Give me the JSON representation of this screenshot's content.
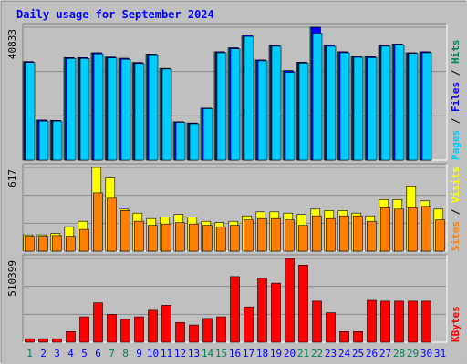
{
  "chart_data": {
    "type": "bar",
    "title": "Daily usage for September 2024",
    "x": [
      "1",
      "2",
      "3",
      "4",
      "5",
      "6",
      "7",
      "8",
      "9",
      "10",
      "11",
      "12",
      "13",
      "14",
      "15",
      "16",
      "17",
      "18",
      "19",
      "20",
      "21",
      "22",
      "23",
      "24",
      "25",
      "26",
      "27",
      "28",
      "29",
      "30",
      "31"
    ],
    "weekend_days": [
      "1",
      "7",
      "8",
      "14",
      "15",
      "21",
      "22",
      "28",
      "29"
    ],
    "colors": {
      "background": "#c0c0c0",
      "plot_bg": "#c0c0c0",
      "grid": "#8c8c8c",
      "title": "#0000ff",
      "weekday_label": "#0000ff",
      "weekend_label": "#00805c",
      "hits": "#00805c",
      "files": "#0000ff",
      "pages": "#00ccff",
      "visits": "#ffff00",
      "sites": "#ff8000",
      "kbytes": "#ff0000"
    },
    "panels": [
      {
        "name": "hits-files-pages",
        "ymax_label": "40833",
        "ymax": 40833,
        "side_labels": [
          {
            "text": "Pages",
            "color": "#00ccff"
          },
          {
            "text": " / ",
            "color": "#000000"
          },
          {
            "text": "Files",
            "color": "#0000ff"
          },
          {
            "text": " / ",
            "color": "#000000"
          },
          {
            "text": "Hits",
            "color": "#00805c"
          }
        ],
        "series": [
          {
            "key": "hits",
            "values": [
              30300,
              12300,
              12200,
              31500,
              31500,
              33000,
              31700,
              31300,
              30000,
              32600,
              28200,
              11800,
              11400,
              16000,
              33300,
              34500,
              38400,
              30800,
              35300,
              27500,
              30100,
              40833,
              35400,
              33300,
              31900,
              31800,
              35300,
              35700,
              33000,
              33300,
              null
            ]
          },
          {
            "key": "files",
            "values": [
              30300,
              12300,
              12200,
              31500,
              31500,
              33000,
              31700,
              31300,
              30000,
              32600,
              28200,
              11800,
              11400,
              16000,
              33300,
              34500,
              38400,
              30800,
              35300,
              27500,
              30100,
              40833,
              35400,
              33300,
              31900,
              31800,
              35300,
              35700,
              33000,
              33300,
              null
            ]
          },
          {
            "key": "pages",
            "values": [
              30000,
              12000,
              12000,
              31200,
              31200,
              32700,
              31400,
              31000,
              29700,
              32400,
              28000,
              11600,
              11200,
              15800,
              33000,
              34200,
              38000,
              30500,
              35000,
              27000,
              29800,
              39000,
              35000,
              33000,
              31600,
              31500,
              35000,
              35400,
              32800,
              33000,
              null
            ]
          }
        ]
      },
      {
        "name": "visits-sites",
        "ymax_label": "617",
        "ymax": 617,
        "side_labels": [
          {
            "text": "Sites",
            "color": "#ff8000"
          },
          {
            "text": " / ",
            "color": "#000000"
          },
          {
            "text": "Visits",
            "color": "#ffff00"
          }
        ],
        "series": [
          {
            "key": "visits",
            "values": [
              120,
              120,
              130,
              180,
              220,
              617,
              540,
              310,
              280,
              240,
              250,
              270,
              250,
              220,
              210,
              220,
              260,
              290,
              290,
              280,
              270,
              310,
              300,
              300,
              280,
              260,
              380,
              380,
              480,
              370,
              310
            ]
          },
          {
            "key": "sites",
            "values": [
              110,
              110,
              115,
              110,
              160,
              430,
              390,
              300,
              220,
              190,
              200,
              210,
              200,
              190,
              180,
              190,
              230,
              240,
              240,
              230,
              190,
              260,
              240,
              260,
              260,
              220,
              320,
              310,
              320,
              330,
              230
            ]
          }
        ]
      },
      {
        "name": "kbytes",
        "ymax_label": "510399",
        "ymax": 510399,
        "side_labels": [
          {
            "text": "KBytes",
            "color": "#ff0000"
          }
        ],
        "series": [
          {
            "key": "kbytes",
            "values": [
              21000,
              21000,
              21000,
              65000,
              155000,
              240000,
              170000,
              140000,
              155000,
              195000,
              225000,
              120000,
              105000,
              145000,
              155000,
              400000,
              215000,
              390000,
              360000,
              510399,
              470000,
              250000,
              180000,
              65000,
              65000,
              255000,
              250000,
              250000,
              250000,
              250000,
              null
            ]
          }
        ]
      }
    ]
  }
}
